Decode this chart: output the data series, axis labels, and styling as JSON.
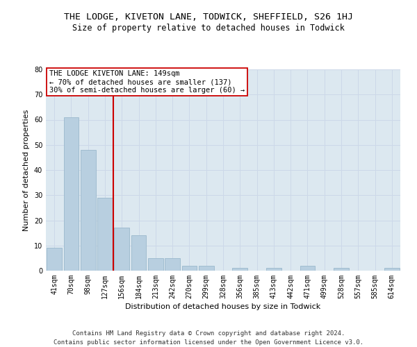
{
  "title": "THE LODGE, KIVETON LANE, TODWICK, SHEFFIELD, S26 1HJ",
  "subtitle": "Size of property relative to detached houses in Todwick",
  "xlabel": "Distribution of detached houses by size in Todwick",
  "ylabel": "Number of detached properties",
  "categories": [
    "41sqm",
    "70sqm",
    "98sqm",
    "127sqm",
    "156sqm",
    "184sqm",
    "213sqm",
    "242sqm",
    "270sqm",
    "299sqm",
    "328sqm",
    "356sqm",
    "385sqm",
    "413sqm",
    "442sqm",
    "471sqm",
    "499sqm",
    "528sqm",
    "557sqm",
    "585sqm",
    "614sqm"
  ],
  "values": [
    9,
    61,
    48,
    29,
    17,
    14,
    5,
    5,
    2,
    2,
    0,
    1,
    0,
    1,
    0,
    2,
    0,
    1,
    0,
    0,
    1
  ],
  "bar_color": "#b8cfe0",
  "bar_edge_color": "#9ab8cc",
  "vline_color": "#cc0000",
  "annotation_text": "THE LODGE KIVETON LANE: 149sqm\n← 70% of detached houses are smaller (137)\n30% of semi-detached houses are larger (60) →",
  "annotation_box_color": "#ffffff",
  "annotation_box_edge": "#cc0000",
  "ylim": [
    0,
    80
  ],
  "yticks": [
    0,
    10,
    20,
    30,
    40,
    50,
    60,
    70,
    80
  ],
  "grid_color": "#ccd8e8",
  "background_color": "#dce8f0",
  "footer_line1": "Contains HM Land Registry data © Crown copyright and database right 2024.",
  "footer_line2": "Contains public sector information licensed under the Open Government Licence v3.0.",
  "title_fontsize": 9.5,
  "subtitle_fontsize": 8.5,
  "xlabel_fontsize": 8,
  "ylabel_fontsize": 8,
  "tick_fontsize": 7,
  "annotation_fontsize": 7.5,
  "footer_fontsize": 6.5
}
